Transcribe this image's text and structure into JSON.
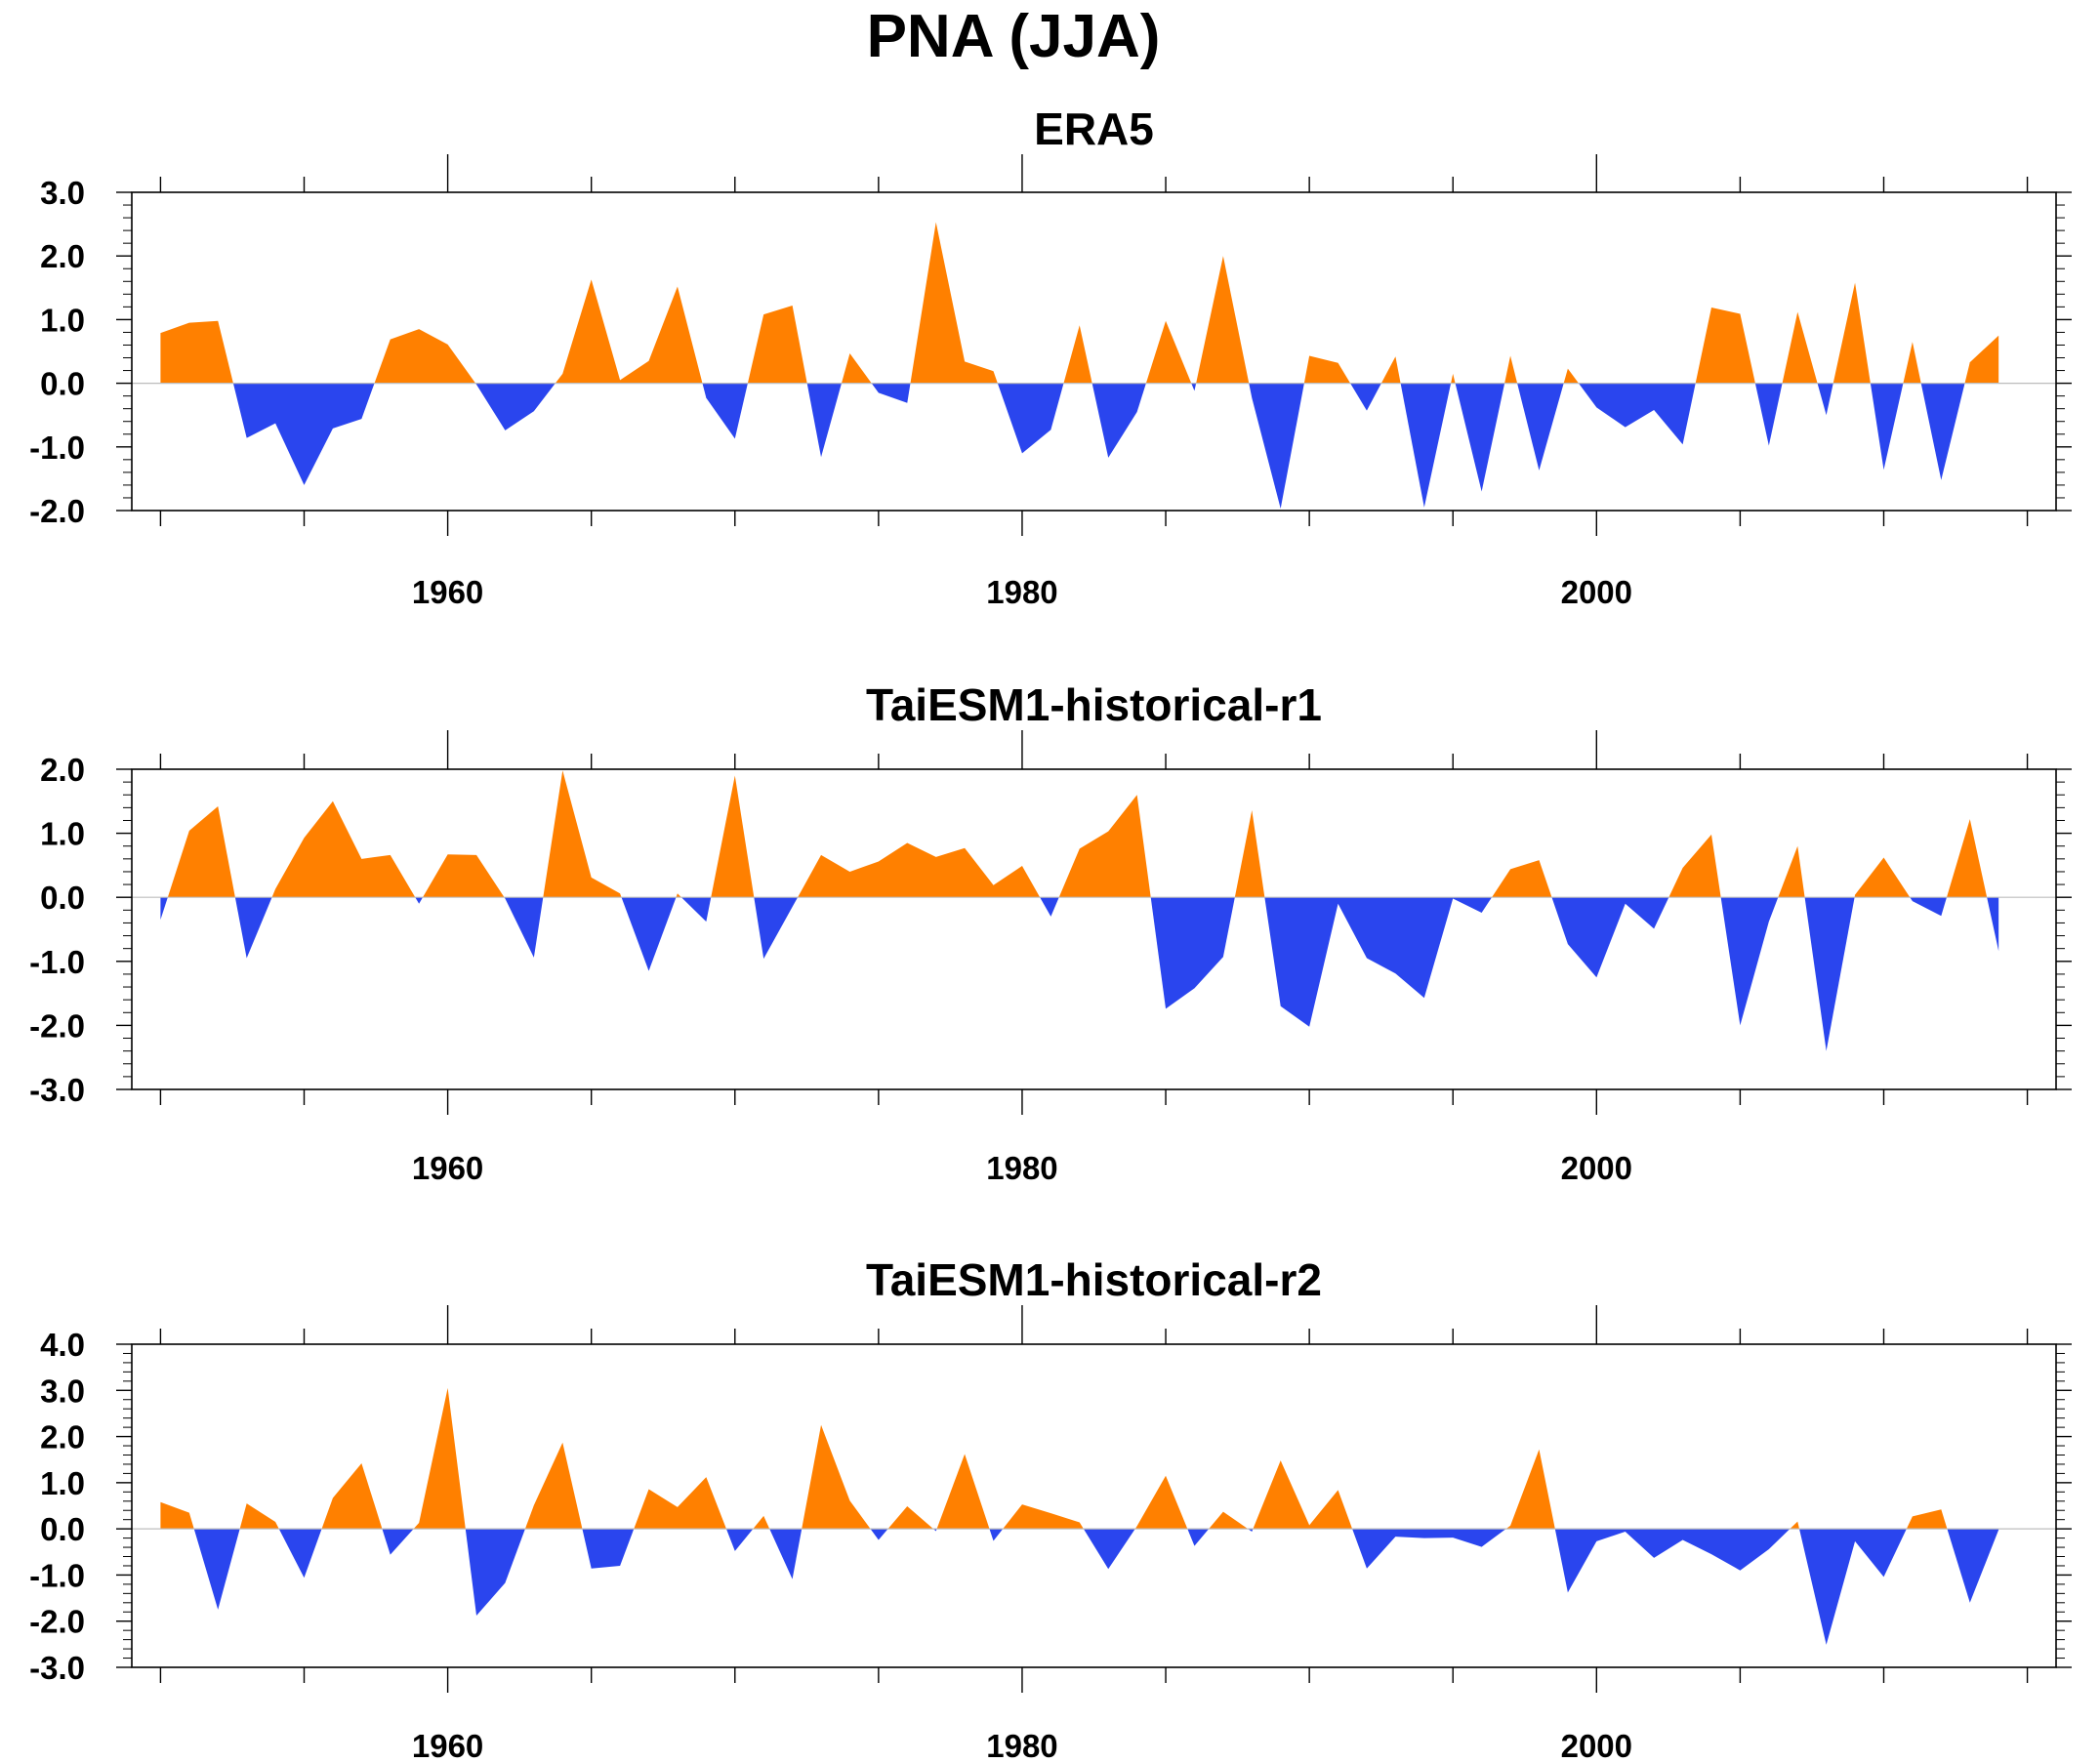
{
  "title": "PNA (JJA)",
  "colors": {
    "positive": "#ff8000",
    "negative": "#2a45ee",
    "zero_line": "#bdbdbd"
  },
  "chart_data": [
    {
      "type": "area",
      "title": "ERA5",
      "xlabel": "",
      "ylabel": "",
      "xlim": [
        1949,
        2016
      ],
      "ylim": [
        -2.0,
        3.0
      ],
      "yticks": [
        3.0,
        2.0,
        1.0,
        0.0,
        -1.0,
        -2.0
      ],
      "ytick_labels": [
        "3.0",
        "2.0",
        "1.0",
        "0.0",
        "-1.0",
        "-2.0"
      ],
      "xticks": [
        1960,
        1980,
        2000
      ],
      "xtick_labels": [
        "1960",
        "1980",
        "2000"
      ],
      "grid": false,
      "x": [
        1950,
        1951,
        1952,
        1953,
        1954,
        1955,
        1956,
        1957,
        1958,
        1959,
        1960,
        1961,
        1962,
        1963,
        1964,
        1965,
        1966,
        1967,
        1968,
        1969,
        1970,
        1971,
        1972,
        1973,
        1974,
        1975,
        1976,
        1977,
        1978,
        1979,
        1980,
        1981,
        1982,
        1983,
        1984,
        1985,
        1986,
        1987,
        1988,
        1989,
        1990,
        1991,
        1992,
        1993,
        1994,
        1995,
        1996,
        1997,
        1998,
        1999,
        2000,
        2001,
        2002,
        2003,
        2004,
        2005,
        2006,
        2007,
        2008,
        2009,
        2010,
        2011,
        2012,
        2013,
        2014
      ],
      "values": [
        0.79,
        0.95,
        0.98,
        -0.86,
        -0.63,
        -1.6,
        -0.71,
        -0.56,
        0.69,
        0.85,
        0.61,
        -0.02,
        -0.74,
        -0.44,
        0.15,
        1.63,
        0.05,
        0.35,
        1.52,
        -0.23,
        -0.87,
        1.08,
        1.22,
        -1.16,
        0.47,
        -0.15,
        -0.31,
        2.53,
        0.34,
        0.19,
        -1.1,
        -0.73,
        0.91,
        -1.17,
        -0.45,
        0.98,
        -0.12,
        2.0,
        -0.23,
        -1.97,
        0.43,
        0.32,
        -0.43,
        0.42,
        -1.95,
        0.15,
        -1.7,
        0.43,
        -1.37,
        0.23,
        -0.38,
        -0.69,
        -0.42,
        -0.96,
        1.19,
        1.09,
        -0.98,
        1.12,
        -0.5,
        1.58,
        -1.36,
        0.65,
        -1.52,
        0.33,
        0.75
      ]
    },
    {
      "type": "area",
      "title": "TaiESM1-historical-r1",
      "xlabel": "",
      "ylabel": "",
      "xlim": [
        1949,
        2016
      ],
      "ylim": [
        -3.0,
        2.0
      ],
      "yticks": [
        2.0,
        1.0,
        0.0,
        -1.0,
        -2.0,
        -3.0
      ],
      "ytick_labels": [
        "2.0",
        "1.0",
        "0.0",
        "-1.0",
        "-2.0",
        "-3.0"
      ],
      "xticks": [
        1960,
        1980,
        2000
      ],
      "xtick_labels": [
        "1960",
        "1980",
        "2000"
      ],
      "grid": false,
      "x": [
        1950,
        1951,
        1952,
        1953,
        1954,
        1955,
        1956,
        1957,
        1958,
        1959,
        1960,
        1961,
        1962,
        1963,
        1964,
        1965,
        1966,
        1967,
        1968,
        1969,
        1970,
        1971,
        1972,
        1973,
        1974,
        1975,
        1976,
        1977,
        1978,
        1979,
        1980,
        1981,
        1982,
        1983,
        1984,
        1985,
        1986,
        1987,
        1988,
        1989,
        1990,
        1991,
        1992,
        1993,
        1994,
        1995,
        1996,
        1997,
        1998,
        1999,
        2000,
        2001,
        2002,
        2003,
        2004,
        2005,
        2006,
        2007,
        2008,
        2009,
        2010,
        2011,
        2012,
        2013,
        2014
      ],
      "values": [
        -0.35,
        1.04,
        1.42,
        -0.95,
        0.13,
        0.93,
        1.5,
        0.6,
        0.66,
        -0.1,
        0.67,
        0.66,
        -0.02,
        -0.94,
        1.98,
        0.31,
        0.06,
        -1.15,
        0.06,
        -0.38,
        1.9,
        -0.96,
        -0.15,
        0.66,
        0.4,
        0.56,
        0.85,
        0.63,
        0.77,
        0.19,
        0.49,
        -0.3,
        0.76,
        1.03,
        1.6,
        -1.74,
        -1.42,
        -0.93,
        1.36,
        -1.7,
        -2.02,
        -0.1,
        -0.95,
        -1.19,
        -1.57,
        -0.02,
        -0.24,
        0.44,
        0.58,
        -0.73,
        -1.25,
        -0.1,
        -0.49,
        0.46,
        0.98,
        -2.0,
        -0.38,
        0.8,
        -2.4,
        0.04,
        0.62,
        -0.06,
        -0.29,
        1.22,
        -0.84
      ]
    },
    {
      "type": "area",
      "title": "TaiESM1-historical-r2",
      "xlabel": "",
      "ylabel": "",
      "xlim": [
        1949,
        2016
      ],
      "ylim": [
        -3.0,
        4.0
      ],
      "yticks": [
        4.0,
        3.0,
        2.0,
        1.0,
        0.0,
        -1.0,
        -2.0,
        -3.0
      ],
      "ytick_labels": [
        "4.0",
        "3.0",
        "2.0",
        "1.0",
        "0.0",
        "-1.0",
        "-2.0",
        "-3.0"
      ],
      "xticks": [
        1960,
        1980,
        2000
      ],
      "xtick_labels": [
        "1960",
        "1980",
        "2000"
      ],
      "grid": false,
      "x": [
        1950,
        1951,
        1952,
        1953,
        1954,
        1955,
        1956,
        1957,
        1958,
        1959,
        1960,
        1961,
        1962,
        1963,
        1964,
        1965,
        1966,
        1967,
        1968,
        1969,
        1970,
        1971,
        1972,
        1973,
        1974,
        1975,
        1976,
        1977,
        1978,
        1979,
        1980,
        1981,
        1982,
        1983,
        1984,
        1985,
        1986,
        1987,
        1988,
        1989,
        1990,
        1991,
        1992,
        1993,
        1994,
        1995,
        1996,
        1997,
        1998,
        1999,
        2000,
        2001,
        2002,
        2003,
        2004,
        2005,
        2006,
        2007,
        2008,
        2009,
        2010,
        2011,
        2012,
        2013,
        2014
      ],
      "values": [
        0.58,
        0.35,
        -1.75,
        0.55,
        0.15,
        -1.06,
        0.67,
        1.42,
        -0.56,
        0.13,
        3.05,
        -1.88,
        -1.17,
        0.51,
        1.87,
        -0.86,
        -0.8,
        0.86,
        0.47,
        1.12,
        -0.48,
        0.28,
        -1.09,
        2.25,
        0.61,
        -0.24,
        0.49,
        -0.05,
        1.62,
        -0.26,
        0.53,
        0.34,
        0.14,
        -0.87,
        0.06,
        1.15,
        -0.37,
        0.37,
        -0.06,
        1.48,
        0.08,
        0.84,
        -0.86,
        -0.17,
        -0.2,
        -0.19,
        -0.39,
        0.07,
        1.72,
        -1.38,
        -0.27,
        -0.06,
        -0.63,
        -0.24,
        -0.55,
        -0.9,
        -0.44,
        0.16,
        -2.51,
        -0.27,
        -1.04,
        0.27,
        0.42,
        -1.6,
        -0.02
      ]
    }
  ]
}
